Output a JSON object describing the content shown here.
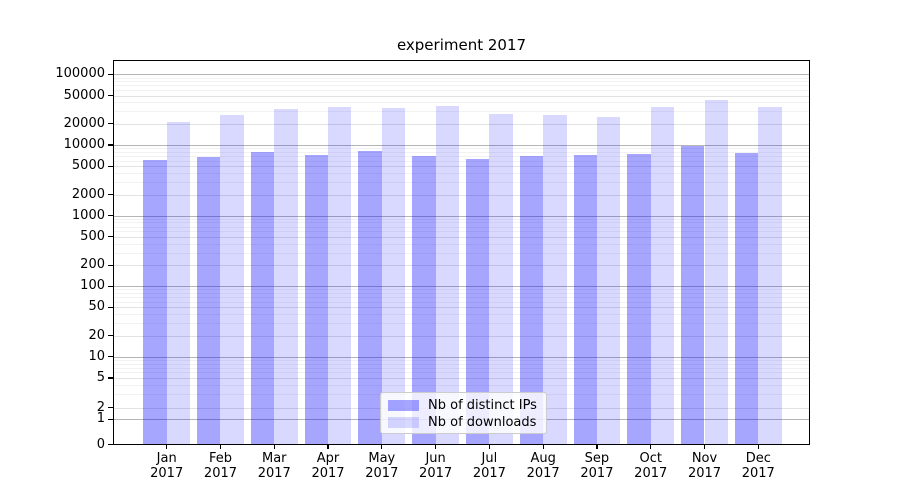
{
  "chart_data": {
    "type": "bar",
    "title": "experiment 2017",
    "categories": [
      "Jan",
      "Feb",
      "Mar",
      "Apr",
      "May",
      "Jun",
      "Jul",
      "Aug",
      "Sep",
      "Oct",
      "Nov",
      "Dec"
    ],
    "category_year": "2017",
    "series": [
      {
        "name": "Nb of distinct IPs",
        "color": "#0000FF",
        "opacity": 0.35,
        "values": [
          6200,
          6800,
          7900,
          7200,
          8100,
          7000,
          6400,
          7000,
          7100,
          7400,
          9700,
          7800
        ]
      },
      {
        "name": "Nb of downloads",
        "color": "#0000FF",
        "opacity": 0.15,
        "values": [
          21000,
          26500,
          32500,
          34000,
          33000,
          35500,
          27500,
          26500,
          25000,
          35000,
          44000,
          34000
        ]
      }
    ],
    "yscale": "symlog",
    "y_ticks": [
      0,
      1,
      2,
      5,
      10,
      20,
      50,
      100,
      200,
      500,
      1000,
      2000,
      5000,
      10000,
      20000,
      50000,
      100000
    ],
    "ylim": [
      0,
      100000
    ],
    "xlabel": "",
    "ylabel": "",
    "grid": "both",
    "legend_position": "lower center"
  }
}
